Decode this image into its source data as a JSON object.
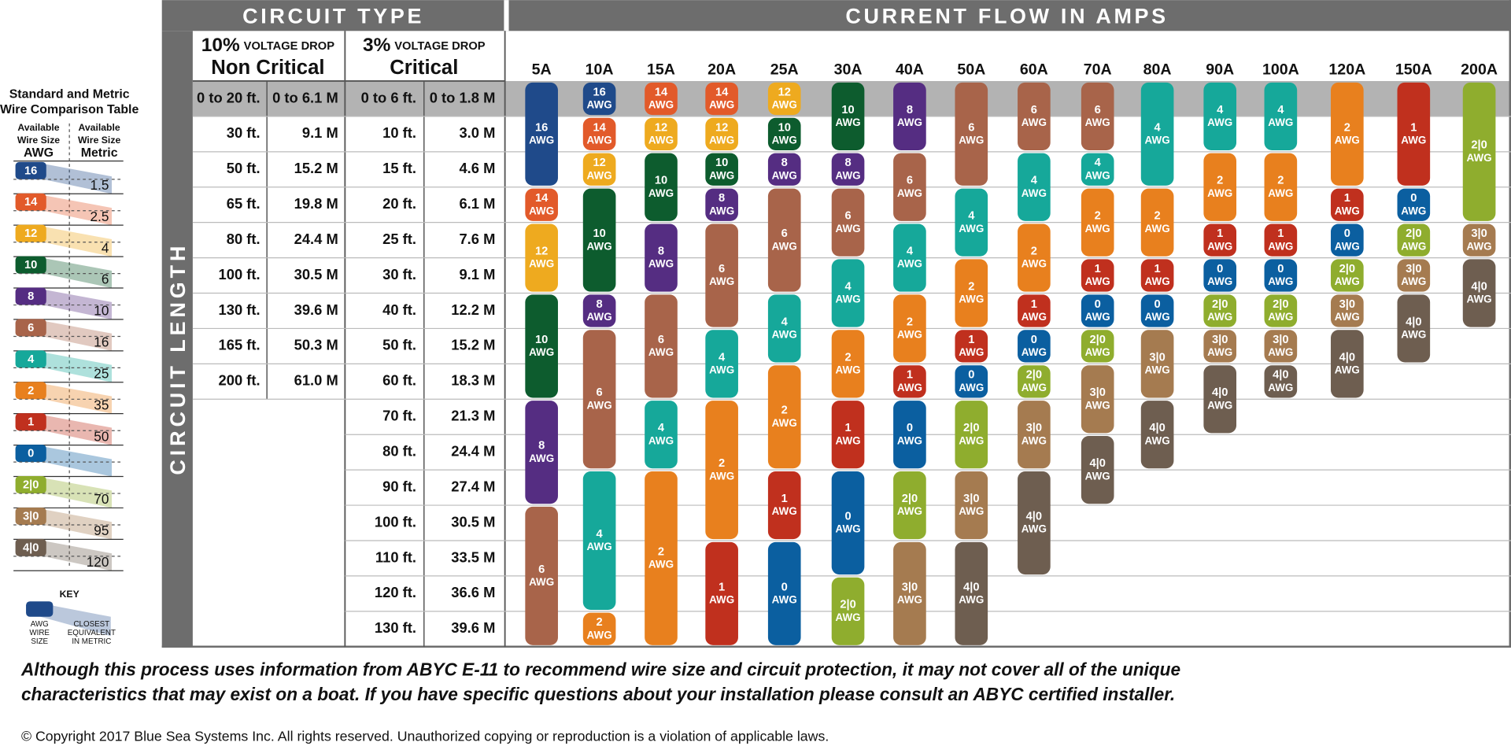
{
  "legend": {
    "title_lines": [
      "Standard and Metric",
      "Wire Comparison Table"
    ],
    "awg_header": [
      "Available",
      "Wire Size",
      "AWG"
    ],
    "metric_header": [
      "Available",
      "Wire Size",
      "Metric"
    ],
    "key": {
      "title": "KEY",
      "awg_label": [
        "AWG",
        "WIRE",
        "SIZE"
      ],
      "metric_label": [
        "CLOSEST",
        "EQUIVALENT",
        "IN METRIC"
      ]
    }
  },
  "gauges": [
    {
      "awg": "16",
      "metric": "1.5",
      "color": "#1f4a8a"
    },
    {
      "awg": "14",
      "metric": "2.5",
      "color": "#e25a2a"
    },
    {
      "awg": "12",
      "metric": "4",
      "color": "#eeaa1f"
    },
    {
      "awg": "10",
      "metric": "6",
      "color": "#0d5c2e"
    },
    {
      "awg": "8",
      "metric": "10",
      "color": "#552d82"
    },
    {
      "awg": "6",
      "metric": "16",
      "color": "#a8644a"
    },
    {
      "awg": "4",
      "metric": "25",
      "color": "#16a89a"
    },
    {
      "awg": "2",
      "metric": "35",
      "color": "#e8801e"
    },
    {
      "awg": "1",
      "metric": "50",
      "color": "#c0301e"
    },
    {
      "awg": "0",
      "metric": null,
      "color": "#0b5fa0"
    },
    {
      "awg": "2|0",
      "metric": "70",
      "color": "#8fad2e"
    },
    {
      "awg": "3|0",
      "metric": "95",
      "color": "#a57b50"
    },
    {
      "awg": "4|0",
      "metric": "120",
      "color": "#6e5e50"
    }
  ],
  "header": {
    "circuit_type": "CIRCUIT TYPE",
    "current_flow": "CURRENT FLOW IN AMPS",
    "circuit_length": "CIRCUIT LENGTH",
    "non_critical": {
      "pct": "10%",
      "drop": "VOLTAGE DROP",
      "name": "Non Critical"
    },
    "critical": {
      "pct": "3%",
      "drop": "VOLTAGE DROP",
      "name": "Critical"
    }
  },
  "non_critical_lengths": [
    [
      "0 to 20 ft.",
      "0 to 6.1 M"
    ],
    [
      "30 ft.",
      "9.1 M"
    ],
    [
      "50 ft.",
      "15.2 M"
    ],
    [
      "65 ft.",
      "19.8 M"
    ],
    [
      "80 ft.",
      "24.4 M"
    ],
    [
      "100 ft.",
      "30.5 M"
    ],
    [
      "130 ft.",
      "39.6 M"
    ],
    [
      "165 ft.",
      "50.3 M"
    ],
    [
      "200 ft.",
      "61.0 M"
    ]
  ],
  "critical_lengths": [
    [
      "0 to 6 ft.",
      "0 to 1.8 M"
    ],
    [
      "10 ft.",
      "3.0 M"
    ],
    [
      "15 ft.",
      "4.6 M"
    ],
    [
      "20 ft.",
      "6.1 M"
    ],
    [
      "25 ft.",
      "7.6 M"
    ],
    [
      "30 ft.",
      "9.1 M"
    ],
    [
      "40 ft.",
      "12.2 M"
    ],
    [
      "50 ft.",
      "15.2 M"
    ],
    [
      "60 ft.",
      "18.3 M"
    ],
    [
      "70 ft.",
      "21.3 M"
    ],
    [
      "80 ft.",
      "24.4 M"
    ],
    [
      "90 ft.",
      "27.4 M"
    ],
    [
      "100 ft.",
      "30.5 M"
    ],
    [
      "110 ft.",
      "33.5 M"
    ],
    [
      "120 ft.",
      "36.6 M"
    ],
    [
      "130 ft.",
      "39.6 M"
    ]
  ],
  "awg_unit": "AWG",
  "columns": [
    {
      "amps": "5A",
      "cells": [
        "16",
        "16",
        "16",
        "14",
        "12",
        "12",
        "10",
        "10",
        "10",
        "8",
        "8",
        "8",
        "6",
        "6",
        "6",
        "6"
      ]
    },
    {
      "amps": "10A",
      "cells": [
        "16",
        "14",
        "12",
        "10",
        "10",
        "10",
        "8",
        "6",
        "6",
        "6",
        "6",
        "4",
        "4",
        "4",
        "4",
        "2"
      ]
    },
    {
      "amps": "15A",
      "cells": [
        "14",
        "12",
        "10",
        "10",
        "8",
        "8",
        "6",
        "6",
        "6",
        "4",
        "4",
        "2",
        "2",
        "2",
        "2",
        "2"
      ]
    },
    {
      "amps": "20A",
      "cells": [
        "14",
        "12",
        "10",
        "8",
        "6",
        "6",
        "6",
        "4",
        "4",
        "2",
        "2",
        "2",
        "2",
        "1",
        "1",
        "1"
      ]
    },
    {
      "amps": "25A",
      "cells": [
        "12",
        "10",
        "8",
        "6",
        "6",
        "6",
        "4",
        "4",
        "2",
        "2",
        "2",
        "1",
        "1",
        "0",
        "0",
        "0"
      ]
    },
    {
      "amps": "30A",
      "cells": [
        "10",
        "10",
        "8",
        "6",
        "6",
        "4",
        "4",
        "2",
        "2",
        "1",
        "1",
        "0",
        "0",
        "0",
        "2|0",
        "2|0"
      ]
    },
    {
      "amps": "40A",
      "cells": [
        "8",
        "8",
        "6",
        "6",
        "4",
        "4",
        "2",
        "2",
        "1",
        "0",
        "0",
        "2|0",
        "2|0",
        "3|0",
        "3|0",
        "3|0"
      ]
    },
    {
      "amps": "50A",
      "cells": [
        "6",
        "6",
        "6",
        "4",
        "4",
        "2",
        "2",
        "1",
        "0",
        "2|0",
        "2|0",
        "3|0",
        "3|0",
        "4|0",
        "4|0",
        "4|0"
      ]
    },
    {
      "amps": "60A",
      "cells": [
        "6",
        "6",
        "4",
        "4",
        "2",
        "2",
        "1",
        "0",
        "2|0",
        "3|0",
        "3|0",
        "4|0",
        "4|0",
        "4|0",
        null,
        null
      ]
    },
    {
      "amps": "70A",
      "cells": [
        "6",
        "6",
        "4",
        "2",
        "2",
        "1",
        "0",
        "2|0",
        "3|0",
        "3|0",
        "4|0",
        "4|0",
        null,
        null,
        null,
        null
      ]
    },
    {
      "amps": "80A",
      "cells": [
        "4",
        "4",
        "4",
        "2",
        "2",
        "1",
        "0",
        "3|0",
        "3|0",
        "4|0",
        "4|0",
        null,
        null,
        null,
        null,
        null
      ]
    },
    {
      "amps": "90A",
      "cells": [
        "4",
        "4",
        "2",
        "2",
        "1",
        "0",
        "2|0",
        "3|0",
        "4|0",
        "4|0",
        null,
        null,
        null,
        null,
        null,
        null
      ]
    },
    {
      "amps": "100A",
      "cells": [
        "4",
        "4",
        "2",
        "2",
        "1",
        "0",
        "2|0",
        "3|0",
        "4|0",
        null,
        null,
        null,
        null,
        null,
        null,
        null
      ]
    },
    {
      "amps": "120A",
      "cells": [
        "2",
        "2",
        "2",
        "1",
        "0",
        "2|0",
        "3|0",
        "4|0",
        "4|0",
        null,
        null,
        null,
        null,
        null,
        null,
        null
      ]
    },
    {
      "amps": "150A",
      "cells": [
        "1",
        "1",
        "1",
        "0",
        "2|0",
        "3|0",
        "4|0",
        "4|0",
        null,
        null,
        null,
        null,
        null,
        null,
        null,
        null
      ]
    },
    {
      "amps": "200A",
      "cells": [
        "2|0",
        "2|0",
        "2|0",
        "2|0",
        "3|0",
        "4|0",
        "4|0",
        null,
        null,
        null,
        null,
        null,
        null,
        null,
        null,
        null
      ]
    }
  ],
  "disclaimer": [
    "Although this process uses information from ABYC E-11 to recommend wire size and circuit protection, it may not cover all of the unique",
    "characteristics that may exist on a boat. If you have specific questions about your installation please consult an ABYC certified installer."
  ],
  "copyright": "© Copyright 2017 Blue Sea Systems Inc. All rights reserved. Unauthorized copying or reproduction is a violation of applicable laws."
}
